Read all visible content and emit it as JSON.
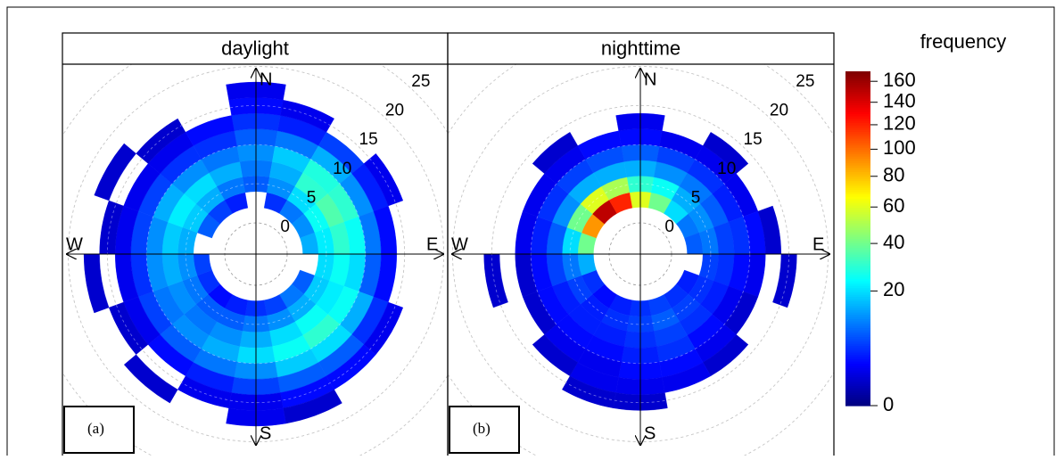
{
  "chart_data": {
    "type": "polar-heatmap",
    "rlim": [
      0,
      27
    ],
    "rticks": [
      0,
      5,
      10,
      15,
      20,
      25
    ],
    "compass": [
      "N",
      "E",
      "S",
      "W"
    ],
    "directions": [
      0,
      20,
      40,
      60,
      80,
      100,
      120,
      140,
      160,
      180,
      200,
      220,
      240,
      260,
      280,
      300,
      320,
      340
    ],
    "speed_bins": [
      2,
      4,
      6,
      8,
      10,
      12,
      14,
      16,
      18
    ],
    "colorbar": {
      "title": "frequency",
      "scale": "sqrt",
      "lim": [
        0,
        170
      ],
      "ticks": [
        0,
        20,
        40,
        60,
        80,
        100,
        120,
        140,
        160
      ],
      "colors": [
        "#00007F",
        "#0000FF",
        "#007FFF",
        "#00FFFF",
        "#7FFF7F",
        "#FFFF00",
        "#FF7F00",
        "#FF0000",
        "#7F0000"
      ]
    },
    "panels": [
      {
        "title": "daylight",
        "label": "(a)",
        "values": [
          [
            null,
            8,
            10,
            12,
            8,
            5,
            3,
            2
          ],
          [
            5,
            12,
            15,
            18,
            10,
            4,
            2,
            null
          ],
          [
            10,
            20,
            30,
            28,
            15,
            6,
            null,
            null
          ],
          [
            12,
            25,
            35,
            30,
            12,
            4,
            2,
            null
          ],
          [
            15,
            22,
            30,
            25,
            10,
            3,
            null,
            null
          ],
          [
            null,
            20,
            25,
            20,
            8,
            3,
            null,
            null
          ],
          [
            8,
            18,
            22,
            25,
            15,
            5,
            2,
            null
          ],
          [
            10,
            15,
            25,
            30,
            20,
            8,
            3,
            null
          ],
          [
            6,
            12,
            20,
            25,
            18,
            8,
            3,
            1
          ],
          [
            5,
            10,
            15,
            20,
            12,
            6,
            2,
            2
          ],
          [
            4,
            8,
            12,
            15,
            10,
            4,
            2,
            null
          ],
          [
            3,
            8,
            10,
            12,
            8,
            3,
            null,
            1
          ],
          [
            5,
            10,
            12,
            10,
            6,
            2,
            1,
            null
          ],
          [
            6,
            12,
            15,
            12,
            5,
            2,
            null,
            1
          ],
          [
            null,
            15,
            18,
            12,
            6,
            2,
            1,
            null
          ],
          [
            8,
            18,
            22,
            15,
            6,
            2,
            null,
            1
          ],
          [
            6,
            15,
            20,
            12,
            5,
            2,
            1,
            null
          ],
          [
            4,
            10,
            15,
            10,
            5,
            3,
            null,
            null
          ]
        ]
      },
      {
        "title": "nighttime",
        "label": "(b)",
        "values": [
          [
            60,
            30,
            15,
            8,
            3,
            2,
            null,
            null
          ],
          [
            40,
            25,
            12,
            6,
            2,
            null,
            null,
            null
          ],
          [
            20,
            15,
            10,
            5,
            2,
            1,
            null,
            null
          ],
          [
            10,
            12,
            8,
            4,
            2,
            null,
            null,
            null
          ],
          [
            8,
            10,
            6,
            5,
            3,
            1,
            null,
            null
          ],
          [
            null,
            6,
            5,
            3,
            2,
            null,
            1,
            null
          ],
          [
            4,
            5,
            4,
            2,
            1,
            null,
            null,
            null
          ],
          [
            5,
            6,
            5,
            3,
            2,
            1,
            null,
            null
          ],
          [
            6,
            8,
            6,
            5,
            3,
            2,
            null,
            null
          ],
          [
            5,
            6,
            5,
            4,
            3,
            2,
            1,
            null
          ],
          [
            4,
            5,
            4,
            3,
            2,
            2,
            1,
            null
          ],
          [
            3,
            4,
            4,
            3,
            2,
            1,
            null,
            null
          ],
          [
            5,
            6,
            4,
            3,
            1,
            null,
            null,
            null
          ],
          [
            15,
            10,
            6,
            3,
            1,
            null,
            1,
            null
          ],
          [
            40,
            20,
            8,
            4,
            2,
            null,
            null,
            null
          ],
          [
            90,
            40,
            12,
            5,
            2,
            null,
            null,
            null
          ],
          [
            150,
            60,
            15,
            6,
            2,
            1,
            null,
            null
          ],
          [
            120,
            50,
            15,
            7,
            3,
            null,
            null,
            null
          ]
        ]
      }
    ]
  }
}
